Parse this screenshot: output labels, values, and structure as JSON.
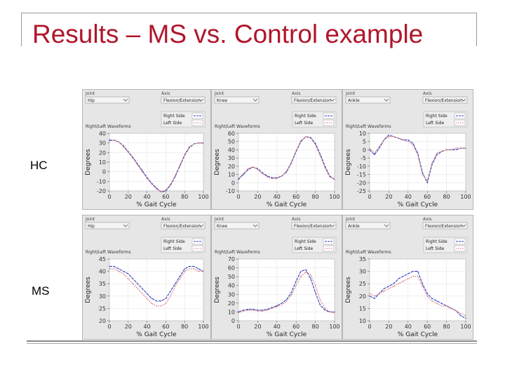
{
  "slide": {
    "title": "Results – MS vs. Control example",
    "row_labels": {
      "hc": "HC",
      "ms": "MS"
    }
  },
  "colors": {
    "title": "#b0162b",
    "right_side": "#2b3fbf",
    "left_side": "#d66a6a"
  },
  "chart_data": [
    {
      "id": "hc-hip",
      "type": "line",
      "row": "HC",
      "controls": [
        {
          "label": "Joint",
          "value": "Hip"
        },
        {
          "label": "Axis",
          "value": "Flexion/Extension"
        }
      ],
      "waveform_title": "Right/Left Waveforms",
      "legend": [
        "Right Side",
        "Left Side"
      ],
      "xlabel": "% Gait Cycle",
      "ylabel": "Degrees",
      "xlim": [
        0,
        100
      ],
      "ylim": [
        -20,
        40
      ],
      "xticks": [
        "0",
        "20",
        "40",
        "60",
        "80",
        "100"
      ],
      "yticks": [
        "-20",
        "-10",
        "0",
        "10",
        "20",
        "30",
        "40"
      ],
      "x": [
        0,
        5,
        10,
        15,
        20,
        25,
        30,
        35,
        40,
        45,
        50,
        55,
        60,
        65,
        70,
        75,
        80,
        85,
        90,
        95,
        100
      ],
      "series": [
        {
          "name": "Right Side",
          "values": [
            33,
            33,
            31,
            27,
            21,
            15,
            8,
            1,
            -6,
            -12,
            -17,
            -21,
            -20,
            -14,
            -5,
            6,
            17,
            25,
            29,
            30,
            30
          ]
        },
        {
          "name": "Left Side",
          "values": [
            32,
            33,
            31,
            26,
            20,
            14,
            7,
            0,
            -7,
            -13,
            -18,
            -21,
            -19,
            -13,
            -4,
            7,
            18,
            26,
            29,
            30,
            30
          ]
        }
      ]
    },
    {
      "id": "hc-knee",
      "type": "line",
      "row": "HC",
      "controls": [
        {
          "label": "Joint",
          "value": "Knee"
        },
        {
          "label": "Axis",
          "value": "Flexion/Extension"
        }
      ],
      "waveform_title": "Right/Left Waveforms",
      "legend": [
        "Right Side",
        "Left Side"
      ],
      "xlabel": "% Gait Cycle",
      "ylabel": "Degrees",
      "xlim": [
        0,
        100
      ],
      "ylim": [
        -10,
        60
      ],
      "xticks": [
        "0",
        "20",
        "40",
        "60",
        "80",
        "100"
      ],
      "yticks": [
        "-10",
        "0",
        "10",
        "20",
        "30",
        "40",
        "50",
        "60"
      ],
      "x": [
        0,
        5,
        10,
        15,
        20,
        25,
        30,
        35,
        40,
        45,
        50,
        55,
        60,
        65,
        70,
        75,
        80,
        85,
        90,
        95,
        100
      ],
      "series": [
        {
          "name": "Right Side",
          "values": [
            4,
            10,
            16,
            19,
            17,
            12,
            8,
            6,
            6,
            8,
            13,
            24,
            38,
            50,
            56,
            55,
            48,
            35,
            20,
            8,
            4
          ]
        },
        {
          "name": "Left Side",
          "values": [
            5,
            11,
            17,
            19,
            16,
            11,
            7,
            5,
            5,
            8,
            14,
            25,
            39,
            51,
            56,
            54,
            46,
            33,
            18,
            7,
            4
          ]
        }
      ]
    },
    {
      "id": "hc-ankle",
      "type": "line",
      "row": "HC",
      "controls": [
        {
          "label": "Joint",
          "value": "Ankle"
        },
        {
          "label": "Axis",
          "value": "Flexion/Extension"
        }
      ],
      "waveform_title": "Right/Left Waveforms",
      "legend": [
        "Right Side",
        "Left Side"
      ],
      "xlabel": "% Gait Cycle",
      "ylabel": "Degrees",
      "xlim": [
        0,
        100
      ],
      "ylim": [
        -25,
        10
      ],
      "xticks": [
        "0",
        "20",
        "40",
        "60",
        "80",
        "100"
      ],
      "yticks": [
        "-25",
        "-20",
        "-15",
        "-10",
        "-5",
        "0",
        "5",
        "10"
      ],
      "x": [
        0,
        5,
        10,
        15,
        20,
        25,
        30,
        35,
        40,
        45,
        50,
        55,
        60,
        65,
        70,
        75,
        80,
        85,
        90,
        95,
        100
      ],
      "series": [
        {
          "name": "Right Side",
          "values": [
            0,
            -3,
            1,
            6,
            9,
            8,
            7,
            6,
            6,
            4,
            -2,
            -14,
            -20,
            -9,
            -3,
            -1,
            0,
            0,
            0,
            1,
            1
          ]
        },
        {
          "name": "Left Side",
          "values": [
            1,
            -2,
            2,
            6,
            8,
            8,
            7,
            6,
            5,
            3,
            -3,
            -15,
            -19,
            -8,
            -2,
            -1,
            0,
            0,
            1,
            1,
            1
          ]
        }
      ]
    },
    {
      "id": "ms-hip",
      "type": "line",
      "row": "MS",
      "controls": [
        {
          "label": "Joint",
          "value": "Hip"
        },
        {
          "label": "Axis",
          "value": "Flexion/Extension"
        }
      ],
      "waveform_title": "Right/Left Waveforms",
      "legend": [
        "Right Side",
        "Left Side"
      ],
      "xlabel": "% Gait Cycle",
      "ylabel": "Degrees",
      "xlim": [
        0,
        100
      ],
      "ylim": [
        20,
        45
      ],
      "xticks": [
        "0",
        "20",
        "40",
        "60",
        "80",
        "100"
      ],
      "yticks": [
        "20",
        "25",
        "30",
        "35",
        "40",
        "45"
      ],
      "x": [
        0,
        5,
        10,
        15,
        20,
        25,
        30,
        35,
        40,
        45,
        50,
        55,
        60,
        65,
        70,
        75,
        80,
        85,
        90,
        95,
        100
      ],
      "series": [
        {
          "name": "Right Side",
          "values": [
            42,
            42,
            41,
            40,
            39,
            37,
            35,
            33,
            31,
            29,
            28,
            28,
            29,
            32,
            35,
            38,
            41,
            42,
            42,
            41,
            40
          ]
        },
        {
          "name": "Left Side",
          "values": [
            41,
            41,
            40,
            39,
            37,
            35,
            33,
            31,
            29,
            27,
            26,
            26,
            27,
            30,
            34,
            37,
            40,
            41,
            41,
            40,
            40
          ]
        }
      ]
    },
    {
      "id": "ms-knee",
      "type": "line",
      "row": "MS",
      "controls": [
        {
          "label": "Joint",
          "value": "Knee"
        },
        {
          "label": "Axis",
          "value": "Flexion/Extension"
        }
      ],
      "waveform_title": "Right/Left Waveforms",
      "legend": [
        "Right Side",
        "Left Side"
      ],
      "xlabel": "% Gait Cycle",
      "ylabel": "Degrees",
      "xlim": [
        0,
        100
      ],
      "ylim": [
        0,
        70
      ],
      "xticks": [
        "0",
        "20",
        "40",
        "60",
        "80",
        "100"
      ],
      "yticks": [
        "0",
        "10",
        "20",
        "30",
        "40",
        "50",
        "60",
        "70"
      ],
      "x": [
        0,
        5,
        10,
        15,
        20,
        25,
        30,
        35,
        40,
        45,
        50,
        55,
        60,
        65,
        70,
        75,
        80,
        85,
        90,
        95,
        100
      ],
      "series": [
        {
          "name": "Right Side",
          "values": [
            10,
            12,
            13,
            13,
            12,
            12,
            13,
            15,
            17,
            20,
            24,
            32,
            45,
            56,
            58,
            48,
            32,
            18,
            12,
            10,
            10
          ]
        },
        {
          "name": "Left Side",
          "values": [
            9,
            11,
            12,
            12,
            11,
            11,
            12,
            14,
            16,
            18,
            22,
            29,
            40,
            50,
            55,
            52,
            40,
            24,
            14,
            10,
            9
          ]
        }
      ]
    },
    {
      "id": "ms-ankle",
      "type": "line",
      "row": "MS",
      "controls": [
        {
          "label": "Joint",
          "value": "Ankle"
        },
        {
          "label": "Axis",
          "value": "Flexion/Extension"
        }
      ],
      "waveform_title": "Right/Left Waveforms",
      "legend": [
        "Right Side",
        "Left Side"
      ],
      "xlabel": "% Gait Cycle",
      "ylabel": "Degrees",
      "xlim": [
        0,
        100
      ],
      "ylim": [
        10,
        35
      ],
      "xticks": [
        "0",
        "20",
        "40",
        "60",
        "80",
        "100"
      ],
      "yticks": [
        "10",
        "15",
        "20",
        "25",
        "30",
        "35"
      ],
      "x": [
        0,
        5,
        10,
        15,
        20,
        25,
        30,
        35,
        40,
        45,
        50,
        55,
        60,
        65,
        70,
        75,
        80,
        85,
        90,
        95,
        100
      ],
      "series": [
        {
          "name": "Right Side",
          "values": [
            20,
            19,
            21,
            23,
            24,
            25,
            27,
            28,
            29,
            30,
            30,
            25,
            21,
            19,
            18,
            17,
            16,
            15,
            14,
            12,
            11
          ]
        },
        {
          "name": "Left Side",
          "values": [
            21,
            20,
            21,
            22,
            23,
            24,
            25,
            26,
            27,
            28,
            28,
            24,
            20,
            18,
            17,
            16,
            16,
            15,
            14,
            13,
            12
          ]
        }
      ]
    }
  ]
}
